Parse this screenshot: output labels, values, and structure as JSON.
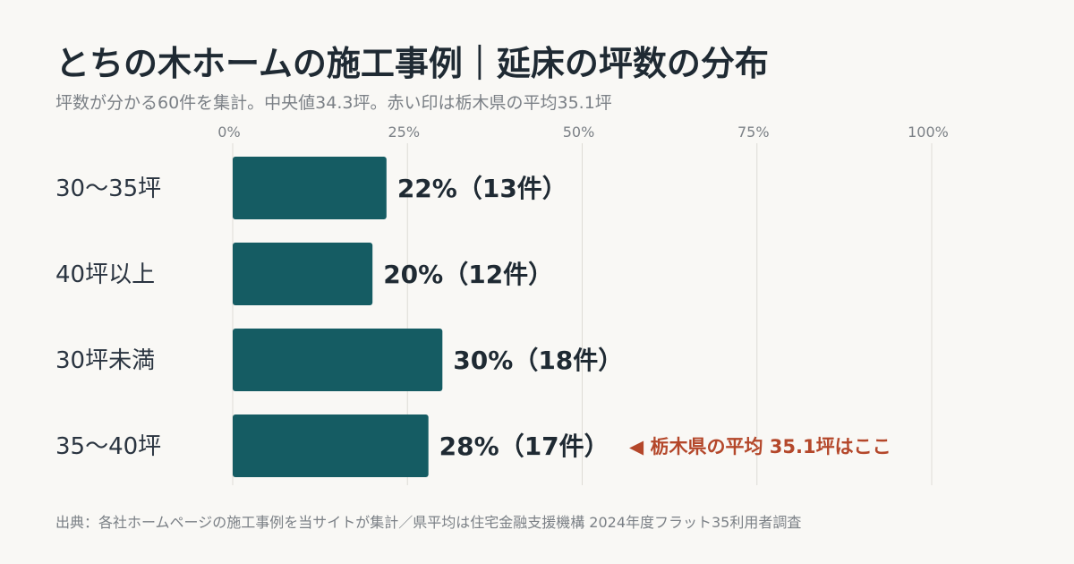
{
  "title": "とちの木ホームの施工事例｜延床の坪数の分布",
  "subtitle": "坪数が分かる60件を集計。中央値34.3坪。赤い印は栃木県の平均35.1坪",
  "source": "出典：各社ホームページの施工事例を当サイトが集計／県平均は住宅金融支援機構 2024年度フラット35利用者調査",
  "colors": {
    "bar": "#155c63",
    "annotation": "#b4472a",
    "grid": "#dedcd6"
  },
  "chart_data": {
    "type": "bar",
    "orientation": "horizontal",
    "categories": [
      "30〜35坪",
      "40坪以上",
      "30坪未満",
      "35〜40坪"
    ],
    "values": [
      22,
      20,
      30,
      28
    ],
    "counts": [
      13,
      12,
      18,
      17
    ],
    "data_labels": [
      "22%（13件）",
      "20%（12件）",
      "30%（18件）",
      "28%（17件）"
    ],
    "xlim": [
      0,
      100
    ],
    "x_ticks": [
      0,
      25,
      50,
      75,
      100
    ],
    "x_tick_labels": [
      "0%",
      "25%",
      "50%",
      "75%",
      "100%"
    ],
    "grid": true,
    "annotation": {
      "category": "35〜40坪",
      "text": "◀ 栃木県の平均 35.1坪はここ"
    }
  }
}
